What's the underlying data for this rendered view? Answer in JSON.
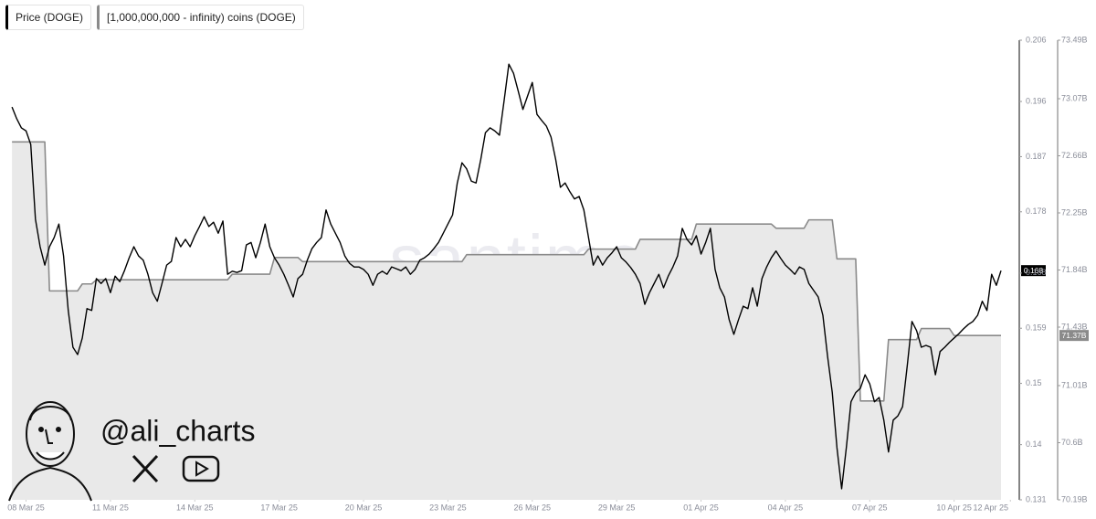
{
  "chart_data": {
    "type": "line",
    "legend": "top-left",
    "watermark": "santiment",
    "handle": "@ali_charts",
    "xlim": [
      "2025-03-07T08:00",
      "2025-04-11T16:00"
    ],
    "xticks": [
      {
        "value": "2025-03-08",
        "label": "08 Mar 25"
      },
      {
        "value": "2025-03-11",
        "label": "11 Mar 25"
      },
      {
        "value": "2025-03-14",
        "label": "14 Mar 25"
      },
      {
        "value": "2025-03-17",
        "label": "17 Mar 25"
      },
      {
        "value": "2025-03-20",
        "label": "20 Mar 25"
      },
      {
        "value": "2025-03-23",
        "label": "23 Mar 25"
      },
      {
        "value": "2025-03-26",
        "label": "26 Mar 25"
      },
      {
        "value": "2025-03-29",
        "label": "29 Mar 25"
      },
      {
        "value": "2025-04-01",
        "label": "01 Apr 25"
      },
      {
        "value": "2025-04-04",
        "label": "04 Apr 25"
      },
      {
        "value": "2025-04-07",
        "label": "07 Apr 25"
      },
      {
        "value": "2025-04-10",
        "label": "10 Apr 25"
      },
      {
        "value": "2025-04-12",
        "label": "12 Apr 25"
      }
    ],
    "ylim": [
      0.131,
      0.206
    ],
    "yticks": [
      0.206,
      0.196,
      0.187,
      0.178,
      0.168,
      0.159,
      0.15,
      0.14,
      0.131
    ],
    "y2lim": [
      70.19,
      73.49
    ],
    "y2ticks": [
      {
        "value": 73.49,
        "label": "73.49B"
      },
      {
        "value": 73.07,
        "label": "73.07B"
      },
      {
        "value": 72.66,
        "label": "72.66B"
      },
      {
        "value": 72.25,
        "label": "72.25B"
      },
      {
        "value": 71.84,
        "label": "71.84B"
      },
      {
        "value": 71.43,
        "label": "71.43B"
      },
      {
        "value": 71.01,
        "label": "71.01B"
      },
      {
        "value": 70.6,
        "label": "70.6B"
      },
      {
        "value": 70.19,
        "label": "70.19B"
      }
    ],
    "x": [
      "2025-03-07T12:00",
      "2025-03-07T16:00",
      "2025-03-07T20:00",
      "2025-03-08T00:00",
      "2025-03-08T04:00",
      "2025-03-08T08:00",
      "2025-03-08T12:00",
      "2025-03-08T16:00",
      "2025-03-08T20:00",
      "2025-03-09T00:00",
      "2025-03-09T04:00",
      "2025-03-09T08:00",
      "2025-03-09T12:00",
      "2025-03-09T16:00",
      "2025-03-09T20:00",
      "2025-03-10T00:00",
      "2025-03-10T04:00",
      "2025-03-10T08:00",
      "2025-03-10T12:00",
      "2025-03-10T16:00",
      "2025-03-10T20:00",
      "2025-03-11T00:00",
      "2025-03-11T04:00",
      "2025-03-11T08:00",
      "2025-03-11T12:00",
      "2025-03-11T16:00",
      "2025-03-11T20:00",
      "2025-03-12T00:00",
      "2025-03-12T04:00",
      "2025-03-12T08:00",
      "2025-03-12T12:00",
      "2025-03-12T16:00",
      "2025-03-12T20:00",
      "2025-03-13T00:00",
      "2025-03-13T04:00",
      "2025-03-13T08:00",
      "2025-03-13T12:00",
      "2025-03-13T16:00",
      "2025-03-13T20:00",
      "2025-03-14T00:00",
      "2025-03-14T04:00",
      "2025-03-14T08:00",
      "2025-03-14T12:00",
      "2025-03-14T16:00",
      "2025-03-14T20:00",
      "2025-03-15T00:00",
      "2025-03-15T04:00",
      "2025-03-15T08:00",
      "2025-03-15T12:00",
      "2025-03-15T16:00",
      "2025-03-15T20:00",
      "2025-03-16T00:00",
      "2025-03-16T04:00",
      "2025-03-16T08:00",
      "2025-03-16T12:00",
      "2025-03-16T16:00",
      "2025-03-16T20:00",
      "2025-03-17T00:00",
      "2025-03-17T04:00",
      "2025-03-17T08:00",
      "2025-03-17T12:00",
      "2025-03-17T16:00",
      "2025-03-17T20:00",
      "2025-03-18T00:00",
      "2025-03-18T04:00",
      "2025-03-18T08:00",
      "2025-03-18T12:00",
      "2025-03-18T16:00",
      "2025-03-18T20:00",
      "2025-03-19T00:00",
      "2025-03-19T04:00",
      "2025-03-19T08:00",
      "2025-03-19T12:00",
      "2025-03-19T16:00",
      "2025-03-19T20:00",
      "2025-03-20T00:00",
      "2025-03-20T04:00",
      "2025-03-20T08:00",
      "2025-03-20T12:00",
      "2025-03-20T16:00",
      "2025-03-20T20:00",
      "2025-03-21T00:00",
      "2025-03-21T04:00",
      "2025-03-21T08:00",
      "2025-03-21T12:00",
      "2025-03-21T16:00",
      "2025-03-21T20:00",
      "2025-03-22T00:00",
      "2025-03-22T04:00",
      "2025-03-22T08:00",
      "2025-03-22T12:00",
      "2025-03-22T16:00",
      "2025-03-22T20:00",
      "2025-03-23T00:00",
      "2025-03-23T04:00",
      "2025-03-23T08:00",
      "2025-03-23T12:00",
      "2025-03-23T16:00",
      "2025-03-23T20:00",
      "2025-03-24T00:00",
      "2025-03-24T04:00",
      "2025-03-24T08:00",
      "2025-03-24T12:00",
      "2025-03-24T16:00",
      "2025-03-24T20:00",
      "2025-03-25T00:00",
      "2025-03-25T04:00",
      "2025-03-25T08:00",
      "2025-03-25T12:00",
      "2025-03-25T16:00",
      "2025-03-25T20:00",
      "2025-03-26T00:00",
      "2025-03-26T04:00",
      "2025-03-26T08:00",
      "2025-03-26T12:00",
      "2025-03-26T16:00",
      "2025-03-26T20:00",
      "2025-03-27T00:00",
      "2025-03-27T04:00",
      "2025-03-27T08:00",
      "2025-03-27T12:00",
      "2025-03-27T16:00",
      "2025-03-27T20:00",
      "2025-03-28T00:00",
      "2025-03-28T04:00",
      "2025-03-28T08:00",
      "2025-03-28T12:00",
      "2025-03-28T16:00",
      "2025-03-28T20:00",
      "2025-03-29T00:00",
      "2025-03-29T04:00",
      "2025-03-29T08:00",
      "2025-03-29T12:00",
      "2025-03-29T16:00",
      "2025-03-29T20:00",
      "2025-03-30T00:00",
      "2025-03-30T04:00",
      "2025-03-30T08:00",
      "2025-03-30T12:00",
      "2025-03-30T16:00",
      "2025-03-30T20:00",
      "2025-03-31T00:00",
      "2025-03-31T04:00",
      "2025-03-31T08:00",
      "2025-03-31T12:00",
      "2025-03-31T16:00",
      "2025-03-31T20:00",
      "2025-04-01T00:00",
      "2025-04-01T04:00",
      "2025-04-01T08:00",
      "2025-04-01T12:00",
      "2025-04-01T16:00",
      "2025-04-01T20:00",
      "2025-04-02T00:00",
      "2025-04-02T04:00",
      "2025-04-02T08:00",
      "2025-04-02T12:00",
      "2025-04-02T16:00",
      "2025-04-02T20:00",
      "2025-04-03T00:00",
      "2025-04-03T04:00",
      "2025-04-03T08:00",
      "2025-04-03T12:00",
      "2025-04-03T16:00",
      "2025-04-03T20:00",
      "2025-04-04T00:00",
      "2025-04-04T04:00",
      "2025-04-04T08:00",
      "2025-04-04T12:00",
      "2025-04-04T16:00",
      "2025-04-04T20:00",
      "2025-04-05T00:00",
      "2025-04-05T04:00",
      "2025-04-05T08:00",
      "2025-04-05T12:00",
      "2025-04-05T16:00",
      "2025-04-05T20:00",
      "2025-04-06T00:00",
      "2025-04-06T04:00",
      "2025-04-06T08:00",
      "2025-04-06T12:00",
      "2025-04-06T16:00",
      "2025-04-06T20:00",
      "2025-04-07T00:00",
      "2025-04-07T04:00",
      "2025-04-07T08:00",
      "2025-04-07T12:00",
      "2025-04-07T16:00",
      "2025-04-07T20:00",
      "2025-04-08T00:00",
      "2025-04-08T04:00",
      "2025-04-08T08:00",
      "2025-04-08T12:00",
      "2025-04-08T16:00",
      "2025-04-08T20:00",
      "2025-04-09T00:00",
      "2025-04-09T04:00",
      "2025-04-09T08:00",
      "2025-04-09T12:00",
      "2025-04-09T16:00",
      "2025-04-09T20:00",
      "2025-04-10T00:00",
      "2025-04-10T04:00",
      "2025-04-10T08:00",
      "2025-04-10T12:00",
      "2025-04-10T16:00",
      "2025-04-10T20:00",
      "2025-04-11T00:00",
      "2025-04-11T04:00",
      "2025-04-11T08:00",
      "2025-04-11T12:00",
      "2025-04-11T16:00"
    ],
    "series": [
      {
        "name": "Price (DOGE)",
        "color": "#000000",
        "current_label": "0.168",
        "values": [
          0.1951,
          0.1932,
          0.1917,
          0.1912,
          0.189,
          0.1768,
          0.1723,
          0.1693,
          0.1723,
          0.1738,
          0.176,
          0.1708,
          0.1619,
          0.1559,
          0.1547,
          0.1574,
          0.1622,
          0.1619,
          0.1671,
          0.1663,
          0.1671,
          0.1648,
          0.1675,
          0.1666,
          0.1684,
          0.1705,
          0.1723,
          0.1708,
          0.1701,
          0.1678,
          0.1648,
          0.1634,
          0.1663,
          0.1693,
          0.1699,
          0.1738,
          0.1723,
          0.1735,
          0.1723,
          0.1741,
          0.1756,
          0.1772,
          0.1756,
          0.1763,
          0.1745,
          0.1765,
          0.1678,
          0.1683,
          0.1681,
          0.1684,
          0.1726,
          0.173,
          0.1705,
          0.173,
          0.176,
          0.1723,
          0.1705,
          0.1693,
          0.1678,
          0.166,
          0.1641,
          0.1671,
          0.1678,
          0.1701,
          0.172,
          0.173,
          0.1738,
          0.1783,
          0.176,
          0.1745,
          0.173,
          0.1708,
          0.1696,
          0.169,
          0.169,
          0.1686,
          0.1678,
          0.166,
          0.1678,
          0.1683,
          0.1678,
          0.169,
          0.1687,
          0.1684,
          0.169,
          0.1678,
          0.1686,
          0.1701,
          0.1705,
          0.1711,
          0.172,
          0.173,
          0.1745,
          0.176,
          0.1775,
          0.1827,
          0.186,
          0.185,
          0.183,
          0.1827,
          0.1865,
          0.1909,
          0.1917,
          0.1912,
          0.1905,
          0.1962,
          0.2021,
          0.2006,
          0.1977,
          0.1947,
          0.1969,
          0.1991,
          0.1939,
          0.1929,
          0.192,
          0.1902,
          0.1865,
          0.182,
          0.1827,
          0.1813,
          0.1801,
          0.1805,
          0.1783,
          0.1738,
          0.1693,
          0.1708,
          0.1693,
          0.1705,
          0.1713,
          0.1723,
          0.1705,
          0.1698,
          0.1689,
          0.1678,
          0.1663,
          0.1629,
          0.1648,
          0.1663,
          0.1678,
          0.1656,
          0.1675,
          0.169,
          0.1708,
          0.1753,
          0.1735,
          0.1726,
          0.1741,
          0.1711,
          0.173,
          0.1753,
          0.1686,
          0.1656,
          0.1641,
          0.1604,
          0.158,
          0.1604,
          0.1626,
          0.1622,
          0.1656,
          0.1626,
          0.1671,
          0.169,
          0.1705,
          0.1716,
          0.1704,
          0.1693,
          0.1686,
          0.1678,
          0.169,
          0.1686,
          0.1663,
          0.1652,
          0.1641,
          0.1611,
          0.1544,
          0.1485,
          0.1395,
          0.1328,
          0.1395,
          0.147,
          0.1485,
          0.1492,
          0.1514,
          0.1499,
          0.147,
          0.1477,
          0.144,
          0.1388,
          0.144,
          0.1447,
          0.1462,
          0.1529,
          0.1601,
          0.1586,
          0.1559,
          0.1562,
          0.1559,
          0.1514,
          0.1552,
          0.1559,
          0.1567,
          0.1574,
          0.1581,
          0.1589,
          0.1596,
          0.1601,
          0.1611,
          0.1634,
          0.1619,
          0.1678,
          0.166,
          0.1684
        ]
      },
      {
        "name": "[1,000,000,000 - infinity) coins (DOGE)",
        "color": "#8a8a8a",
        "fill": "#e9e9e9",
        "axis": "y2",
        "current_label": "71.37B",
        "values": [
          72.76,
          72.76,
          72.76,
          72.76,
          72.76,
          72.76,
          72.76,
          72.76,
          71.69,
          71.69,
          71.69,
          71.69,
          71.69,
          71.69,
          71.69,
          71.74,
          71.74,
          71.74,
          71.77,
          71.77,
          71.77,
          71.77,
          71.77,
          71.77,
          71.77,
          71.77,
          71.77,
          71.77,
          71.77,
          71.77,
          71.77,
          71.77,
          71.77,
          71.77,
          71.77,
          71.77,
          71.77,
          71.77,
          71.77,
          71.77,
          71.77,
          71.77,
          71.77,
          71.77,
          71.77,
          71.77,
          71.77,
          71.81,
          71.81,
          71.81,
          71.81,
          71.81,
          71.81,
          71.81,
          71.81,
          71.81,
          71.93,
          71.93,
          71.93,
          71.93,
          71.93,
          71.93,
          71.9,
          71.9,
          71.9,
          71.9,
          71.9,
          71.9,
          71.9,
          71.9,
          71.9,
          71.9,
          71.9,
          71.9,
          71.9,
          71.9,
          71.9,
          71.9,
          71.9,
          71.9,
          71.9,
          71.9,
          71.9,
          71.9,
          71.9,
          71.9,
          71.9,
          71.9,
          71.9,
          71.9,
          71.9,
          71.9,
          71.9,
          71.9,
          71.9,
          71.9,
          71.9,
          71.95,
          71.95,
          71.95,
          71.95,
          71.95,
          71.95,
          71.95,
          71.95,
          71.95,
          71.95,
          71.95,
          71.95,
          71.95,
          71.95,
          71.95,
          71.95,
          71.95,
          71.95,
          71.95,
          71.95,
          71.95,
          71.95,
          71.95,
          71.95,
          71.95,
          71.95,
          71.99,
          71.99,
          71.99,
          71.99,
          71.99,
          71.99,
          71.99,
          71.99,
          71.99,
          71.99,
          71.99,
          72.06,
          72.06,
          72.06,
          72.06,
          72.06,
          72.06,
          72.06,
          72.06,
          72.06,
          72.06,
          72.06,
          72.06,
          72.17,
          72.17,
          72.17,
          72.17,
          72.17,
          72.17,
          72.17,
          72.17,
          72.17,
          72.17,
          72.17,
          72.17,
          72.17,
          72.17,
          72.17,
          72.17,
          72.17,
          72.14,
          72.14,
          72.14,
          72.14,
          72.14,
          72.14,
          72.14,
          72.2,
          72.2,
          72.2,
          72.2,
          72.2,
          72.2,
          71.92,
          71.92,
          71.92,
          71.92,
          71.92,
          70.9,
          70.9,
          70.9,
          70.9,
          70.9,
          70.9,
          71.34,
          71.34,
          71.34,
          71.34,
          71.34,
          71.34,
          71.34,
          71.42,
          71.42,
          71.42,
          71.42,
          71.42,
          71.42,
          71.42,
          71.37,
          71.37,
          71.37,
          71.37,
          71.37,
          71.37,
          71.37,
          71.37,
          71.37,
          71.37,
          71.37
        ]
      }
    ]
  }
}
